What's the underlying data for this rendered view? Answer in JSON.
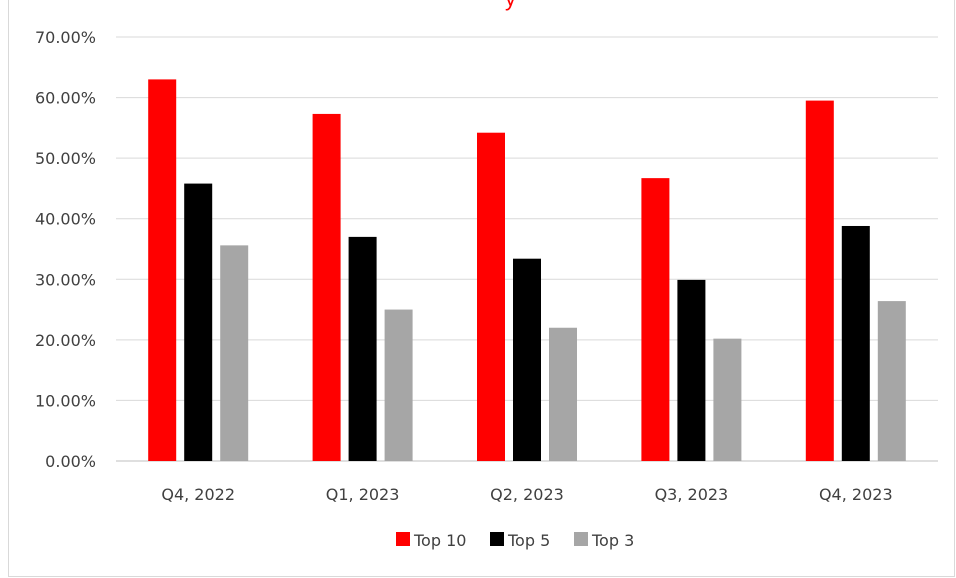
{
  "chart_data": {
    "type": "bar",
    "title_fragment": "y",
    "categories": [
      "Q4, 2022",
      "Q1, 2023",
      "Q2, 2023",
      "Q3, 2023",
      "Q4, 2023"
    ],
    "series": [
      {
        "name": "Top 10",
        "color": "#ff0000",
        "values": [
          0.63,
          0.573,
          0.542,
          0.467,
          0.595
        ]
      },
      {
        "name": "Top 5",
        "color": "#000000",
        "values": [
          0.458,
          0.37,
          0.334,
          0.299,
          0.388
        ]
      },
      {
        "name": "Top 3",
        "color": "#a6a6a6",
        "values": [
          0.356,
          0.25,
          0.22,
          0.202,
          0.264
        ]
      }
    ],
    "y_ticks": [
      "0.00%",
      "10.00%",
      "20.00%",
      "30.00%",
      "40.00%",
      "50.00%",
      "60.00%",
      "70.00%"
    ],
    "ylim": [
      0,
      0.7
    ],
    "grid": true,
    "legend_position": "bottom",
    "xlabel": "",
    "ylabel": ""
  }
}
